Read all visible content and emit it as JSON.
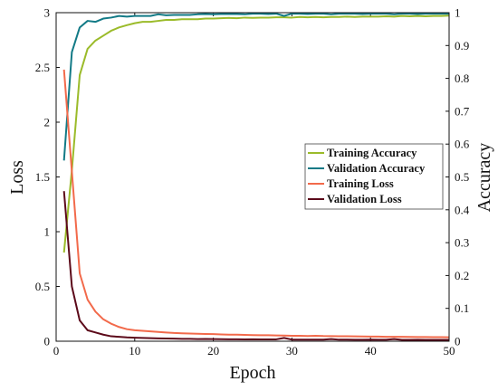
{
  "chart_data": {
    "type": "line",
    "xlabel": "Epoch",
    "ylabel_left": "Loss",
    "ylabel_right": "Accuracy",
    "xlim": [
      0,
      50
    ],
    "ylim_left": [
      0,
      3
    ],
    "ylim_right": [
      0,
      1
    ],
    "x_ticks": [
      "0",
      "10",
      "20",
      "30",
      "40",
      "50"
    ],
    "y_left_ticks": [
      "0",
      "0.5",
      "1",
      "1.5",
      "2",
      "2.5",
      "3"
    ],
    "y_right_ticks": [
      "0",
      "0.1",
      "0.2",
      "0.3",
      "0.4",
      "0.5",
      "0.6",
      "0.7",
      "0.8",
      "0.9",
      "1"
    ],
    "grid": false,
    "legend_position": "center-right",
    "x": [
      1,
      2,
      3,
      4,
      5,
      6,
      7,
      8,
      9,
      10,
      11,
      12,
      13,
      14,
      15,
      16,
      17,
      18,
      19,
      20,
      21,
      22,
      23,
      24,
      25,
      26,
      27,
      28,
      29,
      30,
      31,
      32,
      33,
      34,
      35,
      36,
      37,
      38,
      39,
      40,
      41,
      42,
      43,
      44,
      45,
      46,
      47,
      48,
      49,
      50
    ],
    "series": [
      {
        "name": "Training Accuracy",
        "axis": "right",
        "color": "#9bbb2a",
        "values": [
          0.27,
          0.52,
          0.81,
          0.89,
          0.915,
          0.93,
          0.945,
          0.955,
          0.962,
          0.968,
          0.972,
          0.972,
          0.975,
          0.978,
          0.978,
          0.98,
          0.98,
          0.98,
          0.982,
          0.982,
          0.983,
          0.984,
          0.983,
          0.985,
          0.984,
          0.985,
          0.985,
          0.986,
          0.986,
          0.985,
          0.987,
          0.986,
          0.987,
          0.986,
          0.987,
          0.987,
          0.988,
          0.987,
          0.988,
          0.988,
          0.988,
          0.989,
          0.988,
          0.99,
          0.989,
          0.99,
          0.989,
          0.99,
          0.99,
          0.991
        ]
      },
      {
        "name": "Validation Accuracy",
        "axis": "right",
        "color": "#127a86",
        "values": [
          0.55,
          0.88,
          0.955,
          0.975,
          0.972,
          0.982,
          0.985,
          0.99,
          0.988,
          0.99,
          0.99,
          0.99,
          0.995,
          0.992,
          0.993,
          0.993,
          0.993,
          0.995,
          0.996,
          0.995,
          0.996,
          0.996,
          0.996,
          0.995,
          0.997,
          0.997,
          0.996,
          0.997,
          0.99,
          0.997,
          0.997,
          0.996,
          0.997,
          0.997,
          0.995,
          0.997,
          0.997,
          0.997,
          0.996,
          0.997,
          0.997,
          0.997,
          0.995,
          0.997,
          0.997,
          0.996,
          0.997,
          0.997,
          0.997,
          0.997
        ]
      },
      {
        "name": "Training Loss",
        "axis": "left",
        "color": "#f26a4b",
        "values": [
          2.48,
          1.55,
          0.62,
          0.38,
          0.27,
          0.2,
          0.16,
          0.13,
          0.11,
          0.1,
          0.095,
          0.09,
          0.085,
          0.08,
          0.075,
          0.072,
          0.07,
          0.068,
          0.066,
          0.065,
          0.062,
          0.06,
          0.06,
          0.058,
          0.056,
          0.055,
          0.055,
          0.053,
          0.052,
          0.05,
          0.05,
          0.048,
          0.05,
          0.047,
          0.046,
          0.045,
          0.045,
          0.044,
          0.043,
          0.042,
          0.042,
          0.04,
          0.04,
          0.04,
          0.039,
          0.038,
          0.038,
          0.037,
          0.037,
          0.036
        ]
      },
      {
        "name": "Validation Loss",
        "axis": "left",
        "color": "#5c0a1a",
        "values": [
          1.37,
          0.5,
          0.19,
          0.1,
          0.08,
          0.06,
          0.045,
          0.04,
          0.035,
          0.032,
          0.03,
          0.028,
          0.026,
          0.025,
          0.024,
          0.022,
          0.022,
          0.02,
          0.021,
          0.02,
          0.019,
          0.018,
          0.018,
          0.017,
          0.018,
          0.016,
          0.016,
          0.017,
          0.03,
          0.015,
          0.015,
          0.015,
          0.014,
          0.015,
          0.02,
          0.014,
          0.014,
          0.013,
          0.013,
          0.014,
          0.013,
          0.013,
          0.02,
          0.012,
          0.012,
          0.013,
          0.012,
          0.012,
          0.012,
          0.012
        ]
      }
    ]
  }
}
